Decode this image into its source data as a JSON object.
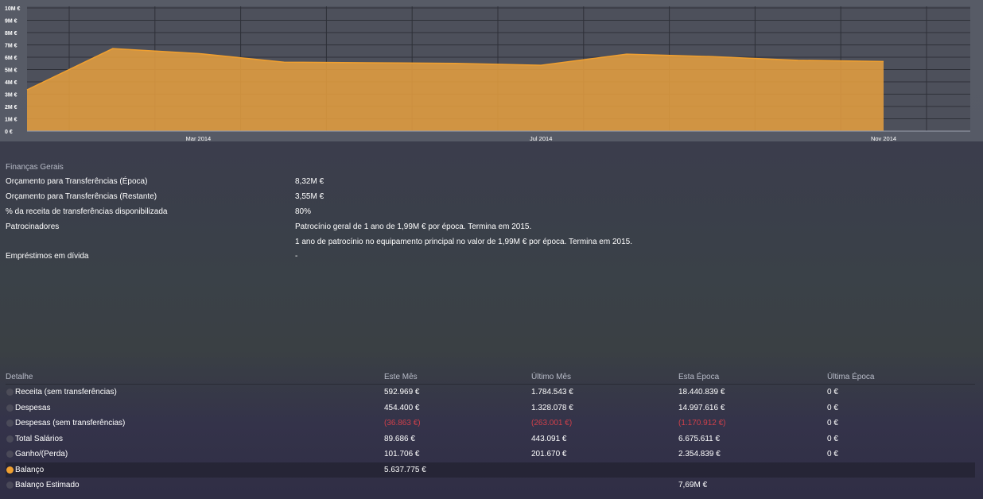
{
  "chart_data": {
    "type": "area",
    "x": [
      "Jan 2014",
      "Feb 2014",
      "Mar 2014",
      "Apr 2014",
      "May 2014",
      "Jun 2014",
      "Jul 2014",
      "Aug 2014",
      "Sep 2014",
      "Oct 2014",
      "Nov 2014"
    ],
    "values": [
      3.35,
      6.7,
      6.3,
      5.6,
      5.55,
      5.5,
      5.35,
      6.25,
      6.05,
      5.75,
      5.65
    ],
    "unit": "M €",
    "ylim": [
      0,
      10
    ],
    "y_ticks": [
      "0 €",
      "1M €",
      "2M €",
      "3M €",
      "4M €",
      "5M €",
      "6M €",
      "7M €",
      "8M €",
      "9M €",
      "10M €"
    ],
    "x_tick_labels": [
      {
        "index": 2,
        "label": "Mar 2014"
      },
      {
        "index": 6,
        "label": "Jul 2014"
      },
      {
        "index": 10,
        "label": "Nov 2014"
      }
    ],
    "grid": true,
    "color": "#e8a040"
  },
  "general": {
    "title": "Finanças Gerais",
    "rows": [
      {
        "label": "Orçamento para Transferências (Época)",
        "value": "8,32M €"
      },
      {
        "label": "Orçamento para Transferências (Restante)",
        "value": "3,55M €"
      },
      {
        "label": "% da receita de transferências disponibilizada",
        "value": "80%"
      },
      {
        "label": "Patrocinadores",
        "value": "Patrocínio geral de 1 ano de 1,99M € por época. Termina em 2015."
      },
      {
        "label": "",
        "value": "1 ano de patrocínio no equipamento principal no valor de 1,99M € por época. Termina em 2015."
      },
      {
        "label": "Empréstimos em dívida",
        "value": "-"
      }
    ]
  },
  "detail": {
    "headers": [
      "Detalhe",
      "Este Mês",
      "Último Mês",
      "Esta Época",
      "Última Época"
    ],
    "rows": [
      {
        "label": "Receita (sem transferências)",
        "cells": [
          "592.969 €",
          "1.784.543 €",
          "18.440.839 €",
          "0 €"
        ]
      },
      {
        "label": "Despesas",
        "cells": [
          "454.400 €",
          "1.328.078 €",
          "14.997.616 €",
          "0 €"
        ]
      },
      {
        "label": "Despesas (sem transferências)",
        "cells": [
          "(36.863 €)",
          "(263.001 €)",
          "(1.170.912 €)",
          "0 €"
        ]
      },
      {
        "label": "Total Salários",
        "cells": [
          "89.686 €",
          "443.091 €",
          "6.675.611 €",
          "0 €"
        ]
      },
      {
        "label": "Ganho/(Perda)",
        "cells": [
          "101.706 €",
          "201.670 €",
          "2.354.839 €",
          "0 €"
        ]
      },
      {
        "label": "Balanço",
        "cells": [
          "5.637.775 €",
          "",
          "",
          ""
        ]
      },
      {
        "label": "Balanço Estimado",
        "cells": [
          "",
          "",
          "7,69M €",
          ""
        ]
      }
    ],
    "negative_color": "#d0404a",
    "selected_row": "Balanço"
  }
}
